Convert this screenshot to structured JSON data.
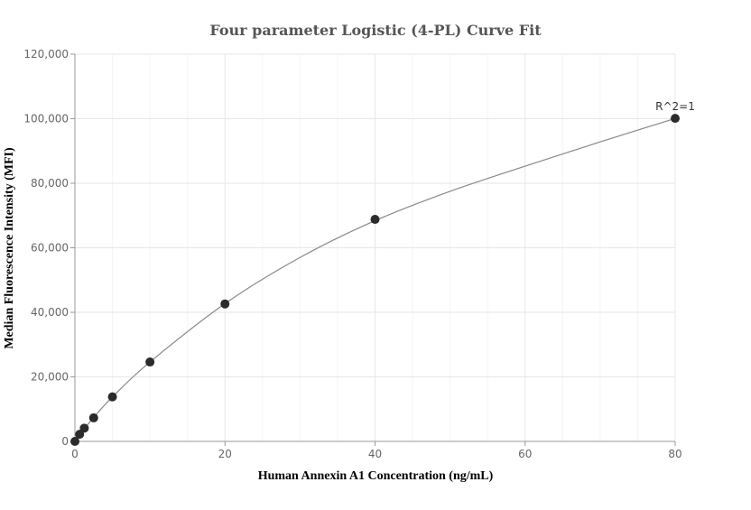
{
  "chart_data": {
    "type": "scatter",
    "title": "Four parameter Logistic (4-PL) Curve Fit",
    "xlabel": "Human Annexin A1 Concentration (ng/mL)",
    "ylabel": "Median Fluorescence Intensity (MFI)",
    "xlim": [
      0,
      80
    ],
    "ylim": [
      0,
      120000
    ],
    "x_ticks": [
      0,
      20,
      40,
      60,
      80
    ],
    "y_ticks": [
      0,
      20000,
      40000,
      60000,
      80000,
      100000,
      120000
    ],
    "x_tick_labels": [
      "0",
      "20",
      "40",
      "60",
      "80"
    ],
    "y_tick_labels": [
      "0",
      "20,000",
      "40,000",
      "60,000",
      "80,000",
      "100,000",
      "120,000"
    ],
    "grid": true,
    "series": [
      {
        "type": "scatter",
        "x": [
          0,
          0.625,
          1.25,
          2.5,
          5,
          10,
          20,
          40,
          80
        ],
        "y": [
          0,
          2200,
          4100,
          7300,
          13800,
          24600,
          42600,
          68800,
          100100
        ],
        "color": "#2b2b2b"
      },
      {
        "type": "line",
        "x": [
          0,
          0.625,
          1.25,
          2.5,
          5,
          10,
          20,
          30,
          40,
          50,
          60,
          70,
          80
        ],
        "y": [
          0,
          1900,
          3900,
          7400,
          13800,
          24600,
          42700,
          57000,
          68400,
          77500,
          85300,
          92800,
          100100
        ],
        "color": "#888888"
      }
    ],
    "annotations": [
      {
        "text": "R^2=1",
        "x": 80,
        "y": 100100
      }
    ]
  }
}
